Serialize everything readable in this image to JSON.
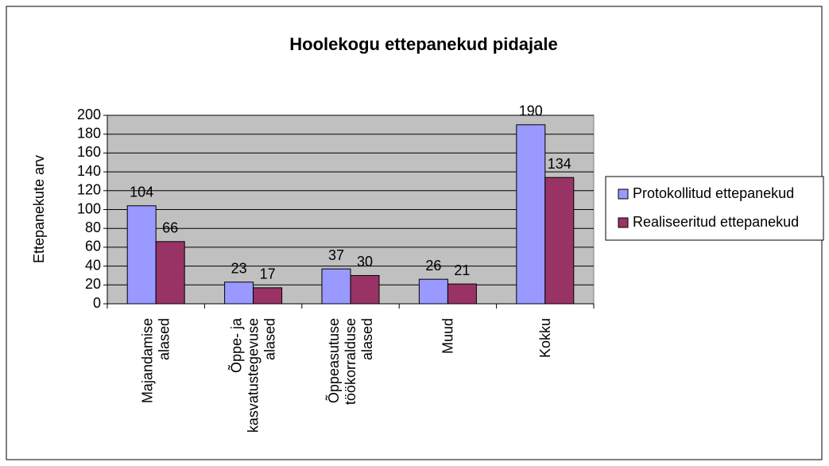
{
  "chart_data": {
    "type": "bar",
    "title": "Hoolekogu ettepanekud pidajale",
    "y_label": "Ettepanekute arv",
    "categories": [
      "Majandamise\nalased",
      "Õppe- ja\nkasvatustegevuse\nalased",
      "Õppeasutuse\ntöökorralduse\nalased",
      "Muud",
      "Kokku"
    ],
    "series": [
      {
        "name": "Protokollitud ettepanekud",
        "color": "#9999ff",
        "values": [
          104,
          23,
          37,
          26,
          190
        ]
      },
      {
        "name": "Realiseeritud ettepanekud",
        "color": "#993366",
        "values": [
          66,
          17,
          30,
          21,
          134
        ]
      }
    ],
    "ylim": [
      0,
      200
    ],
    "yticks": [
      0,
      20,
      40,
      60,
      80,
      100,
      120,
      140,
      160,
      180,
      200
    ],
    "grid": true,
    "legend": "right",
    "plot_background": "#c0c0c0"
  }
}
